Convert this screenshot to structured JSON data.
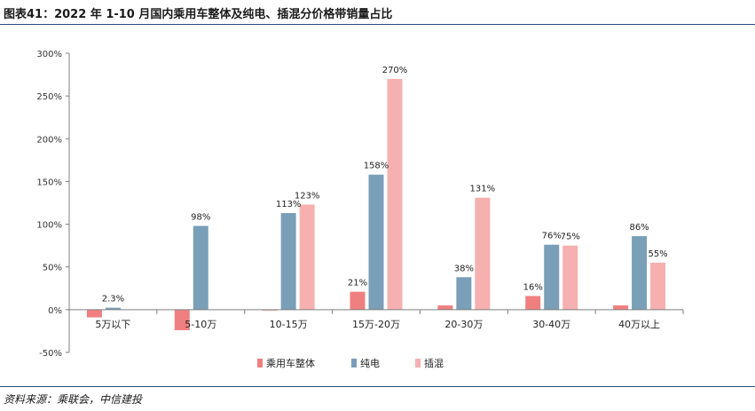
{
  "header": {
    "title": "图表41：2022 年 1-10 月国内乘用车整体及纯电、插混分价格带销量占比"
  },
  "footer": {
    "source": "资料来源：乘联会，中信建投"
  },
  "colors": {
    "series_overall": "#f08080",
    "series_bev": "#7a9fb8",
    "series_phev": "#f7b0b0",
    "axis": "#7f7f7f",
    "rule": "#2b4f7a"
  },
  "chart_data": {
    "type": "bar",
    "title": "",
    "xlabel": "",
    "ylabel": "",
    "ylim": [
      -50,
      300
    ],
    "yticks": [
      -50,
      0,
      50,
      100,
      150,
      200,
      250,
      300
    ],
    "ytick_labels": [
      "-50%",
      "0%",
      "50%",
      "100%",
      "150%",
      "200%",
      "250%",
      "300%"
    ],
    "grid": false,
    "legend_position": "bottom",
    "categories": [
      "5万以下",
      "5-10万",
      "10-15万",
      "15万-20万",
      "20-30万",
      "30-40万",
      "40万以上"
    ],
    "series": [
      {
        "name": "乘用车整体",
        "values": [
          -9,
          -24,
          -1,
          21,
          5,
          16,
          5
        ],
        "labels": [
          "",
          "",
          "",
          "21%",
          "",
          "16%",
          ""
        ]
      },
      {
        "name": "纯电",
        "values": [
          2.3,
          98,
          113,
          158,
          38,
          76,
          86
        ],
        "labels": [
          "2.3%",
          "98%",
          "113%",
          "158%",
          "38%",
          "76%",
          "86%"
        ]
      },
      {
        "name": "插混",
        "values": [
          0,
          0,
          123,
          270,
          131,
          75,
          55
        ],
        "labels": [
          "",
          "",
          "123%",
          "270%",
          "131%",
          "75%",
          "55%"
        ]
      }
    ]
  }
}
